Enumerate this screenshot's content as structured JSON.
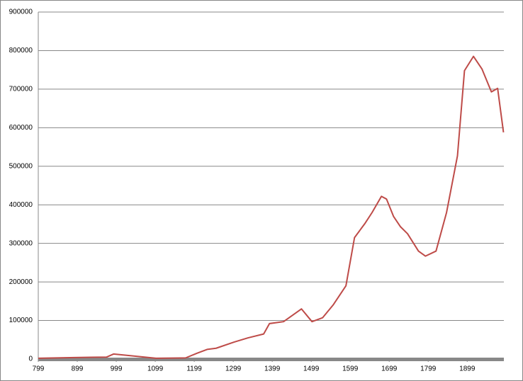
{
  "chart_data": {
    "type": "line",
    "x": [
      799,
      892,
      974,
      992,
      1101,
      1177,
      1206,
      1232,
      1255,
      1301,
      1337,
      1377,
      1392,
      1428,
      1474,
      1501,
      1528,
      1555,
      1588,
      1610,
      1637,
      1655,
      1679,
      1692,
      1710,
      1728,
      1746,
      1774,
      1792,
      1819,
      1846,
      1874,
      1892,
      1915,
      1937,
      1961,
      1977,
      1992
    ],
    "series": [
      {
        "color": "#be4b48",
        "values": [
          2000,
          4000,
          5000,
          13000,
          2000,
          3000,
          15000,
          25000,
          28000,
          44000,
          55000,
          65000,
          92000,
          97000,
          130000,
          97000,
          107000,
          140000,
          190000,
          315000,
          352000,
          380000,
          422000,
          415000,
          370000,
          343000,
          325000,
          280000,
          267000,
          280000,
          380000,
          527000,
          748000,
          785000,
          752000,
          693000,
          702000,
          588000
        ]
      }
    ],
    "xlim": [
      799,
      1993
    ],
    "xticks": [
      799,
      899,
      999,
      1099,
      1199,
      1299,
      1399,
      1499,
      1599,
      1699,
      1799,
      1899
    ],
    "ylim": [
      0,
      900000
    ],
    "yticks": [
      0,
      100000,
      200000,
      300000,
      400000,
      500000,
      600000,
      700000,
      800000,
      900000
    ],
    "grid": true
  }
}
